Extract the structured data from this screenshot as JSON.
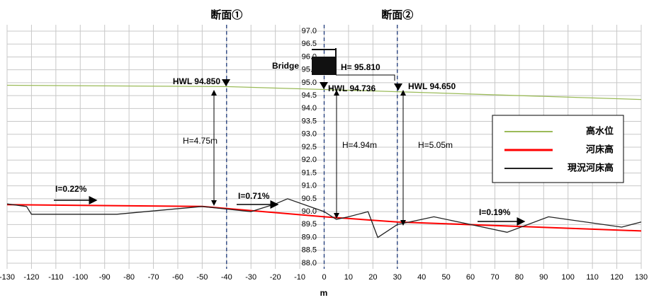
{
  "chart_data": {
    "type": "line",
    "x_label": "m",
    "xlim": [
      -130,
      130
    ],
    "xticks": [
      -130,
      -120,
      -110,
      -100,
      -90,
      -80,
      -70,
      -60,
      -50,
      -40,
      -30,
      -20,
      -10,
      0,
      10,
      20,
      30,
      40,
      50,
      60,
      70,
      80,
      90,
      100,
      110,
      120,
      130
    ],
    "ylim": [
      88,
      97
    ],
    "yticks": [
      {
        "value": 88,
        "label": "88.0"
      },
      88.5,
      {
        "value": 89,
        "label": "89.0"
      },
      89.5,
      {
        "value": 90,
        "label": "90.0"
      },
      90.5,
      {
        "value": 91,
        "label": "91.0"
      },
      91.5,
      {
        "value": 92,
        "label": "92.0"
      },
      92.5,
      {
        "value": 93,
        "label": "93.0"
      },
      93.5,
      {
        "value": 94,
        "label": "94.0"
      },
      94.5,
      {
        "value": 95,
        "label": "95.0"
      },
      95.5,
      {
        "value": 96,
        "label": "96.0"
      },
      96.5,
      {
        "value": 97,
        "label": "97.0"
      }
    ],
    "grid": true,
    "legend": "right",
    "series": [
      {
        "name": "高水位",
        "color": "#9bbb59",
        "x": [
          -130,
          -40,
          0,
          30,
          130
        ],
        "values": [
          94.9,
          94.85,
          94.736,
          94.65,
          94.35
        ]
      },
      {
        "name": "河床高",
        "color": "#ff0000",
        "x": [
          -130,
          -50,
          0,
          30,
          130
        ],
        "values": [
          90.27,
          90.2,
          89.8,
          89.6,
          89.25
        ]
      },
      {
        "name": "現況河床高",
        "color": "#222222",
        "x": [
          -130,
          -122,
          -120,
          -85,
          -50,
          -30,
          -20,
          -15,
          0,
          5,
          10,
          18,
          22,
          30,
          35,
          45,
          60,
          75,
          92,
          122,
          130
        ],
        "values": [
          90.3,
          90.2,
          89.9,
          89.9,
          90.2,
          90.0,
          90.3,
          90.5,
          90.0,
          89.7,
          89.8,
          90.0,
          89.0,
          89.5,
          89.6,
          89.8,
          89.5,
          89.2,
          89.8,
          89.4,
          89.6
        ]
      }
    ],
    "sections": [
      "断面①",
      "断面②"
    ],
    "bridge": {
      "label": "Bridge",
      "height": "H= 95.810"
    },
    "hwl_labels": [
      "HWL 94.850",
      "HWL 94.736",
      "HWL 94.650"
    ],
    "depth_labels": [
      "H=4.75m",
      "H=4.94m",
      "H=5.05m"
    ],
    "slope_labels": [
      "I=0.22%",
      "I=0.71%",
      "I=0.19%"
    ]
  }
}
